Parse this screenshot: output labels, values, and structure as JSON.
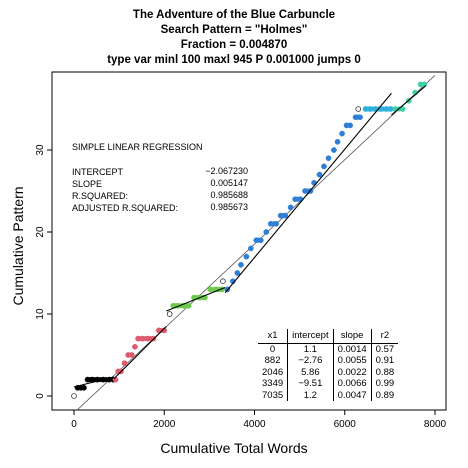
{
  "titles": {
    "line1": "The Adventure of the Blue Carbuncle",
    "line2": "Search Pattern = \"Holmes\"",
    "line3": "Fraction = 0.004870",
    "line4": "type var minl 100 maxl 945 P 0.001000 jumps 0"
  },
  "regression": {
    "heading": "SIMPLE LINEAR REGRESSION",
    "intercept_label": "INTERCEPT",
    "intercept_value": "−2.067230",
    "slope_label": "SLOPE",
    "slope_value": "0.005147",
    "rsq_label": "R.SQUARED:",
    "rsq_value": "0.985688",
    "adj_label": "ADJUSTED R.SQUARED:",
    "adj_value": "0.985673"
  },
  "fit_table": {
    "headers": [
      "x1",
      "intercept",
      "slope",
      "r2"
    ],
    "rows": [
      [
        "0",
        "1.1",
        "0.0014",
        "0.57"
      ],
      [
        "882",
        "−2.76",
        "0.0055",
        "0.91"
      ],
      [
        "2046",
        "5.86",
        "0.0022",
        "0.88"
      ],
      [
        "3349",
        "−9.51",
        "0.0066",
        "0.99"
      ],
      [
        "7035",
        "1.2",
        "0.0047",
        "0.89"
      ]
    ]
  },
  "chart_data": {
    "type": "scatter",
    "xlabel": "Cumulative Total Words",
    "ylabel": "Cumulative Pattern",
    "xlim": [
      0,
      8000
    ],
    "ylim": [
      0,
      38
    ],
    "xticks": [
      0,
      2000,
      4000,
      6000,
      8000
    ],
    "yticks": [
      0,
      10,
      20,
      30
    ],
    "colors": {
      "segment1": "#000000",
      "segment2": "#e05a6e",
      "segment3": "#6cc94a",
      "segment4": "#2e7fd6",
      "segment5": "#2fb0dd",
      "segment6": "#3fd0a8"
    },
    "series": [
      {
        "segment": 1,
        "color_key": "segment1",
        "points": [
          [
            80,
            1
          ],
          [
            150,
            1
          ],
          [
            220,
            1
          ],
          [
            300,
            2
          ],
          [
            400,
            2
          ],
          [
            520,
            2
          ],
          [
            650,
            2
          ],
          [
            780,
            2
          ],
          [
            870,
            2
          ]
        ]
      },
      {
        "segment": 2,
        "color_key": "segment2",
        "points": [
          [
            920,
            2
          ],
          [
            980,
            3
          ],
          [
            1040,
            3
          ],
          [
            1120,
            4
          ],
          [
            1200,
            5
          ],
          [
            1280,
            5
          ],
          [
            1350,
            6
          ],
          [
            1420,
            7
          ],
          [
            1520,
            7
          ],
          [
            1640,
            7
          ],
          [
            1760,
            7
          ],
          [
            1880,
            8
          ],
          [
            2000,
            8
          ]
        ]
      },
      {
        "segment": 3,
        "color_key": "segment3",
        "points": [
          [
            2120,
            10
          ],
          [
            2200,
            11
          ],
          [
            2300,
            11
          ],
          [
            2420,
            11
          ],
          [
            2540,
            11
          ],
          [
            2660,
            12
          ],
          [
            2780,
            12
          ],
          [
            2900,
            12
          ],
          [
            3020,
            13
          ],
          [
            3150,
            13
          ],
          [
            3280,
            13
          ]
        ]
      },
      {
        "segment": 4,
        "color_key": "segment4",
        "points": [
          [
            3400,
            13
          ],
          [
            3520,
            14
          ],
          [
            3620,
            15
          ],
          [
            3700,
            16
          ],
          [
            3820,
            17
          ],
          [
            3920,
            18
          ],
          [
            4040,
            19
          ],
          [
            4140,
            19
          ],
          [
            4260,
            20
          ],
          [
            4360,
            21
          ],
          [
            4480,
            21
          ],
          [
            4580,
            22
          ],
          [
            4680,
            22
          ],
          [
            4800,
            23
          ],
          [
            4900,
            24
          ],
          [
            5020,
            24
          ],
          [
            5120,
            25
          ],
          [
            5240,
            25
          ],
          [
            5320,
            26
          ],
          [
            5440,
            27
          ],
          [
            5540,
            28
          ],
          [
            5640,
            29
          ],
          [
            5760,
            30
          ],
          [
            5840,
            31
          ],
          [
            5940,
            32
          ],
          [
            6040,
            33
          ],
          [
            6120,
            33
          ],
          [
            6240,
            34
          ],
          [
            6340,
            34
          ]
        ]
      },
      {
        "segment": 5,
        "color_key": "segment5",
        "points": [
          [
            6460,
            35
          ],
          [
            6560,
            35
          ],
          [
            6680,
            35
          ],
          [
            6800,
            35
          ],
          [
            6920,
            35
          ],
          [
            7020,
            35
          ]
        ]
      },
      {
        "segment": 6,
        "color_key": "segment6",
        "points": [
          [
            7120,
            35
          ],
          [
            7280,
            35
          ],
          [
            7420,
            36
          ],
          [
            7560,
            37
          ],
          [
            7680,
            38
          ],
          [
            7760,
            38
          ]
        ]
      }
    ],
    "hollow_points": [
      [
        0,
        0
      ],
      [
        2120,
        10
      ],
      [
        3300,
        14
      ],
      [
        6300,
        35
      ]
    ],
    "fit_lines": [
      {
        "x1": 0,
        "x2": 882,
        "intercept": 1.1,
        "slope": 0.0014
      },
      {
        "x1": 882,
        "x2": 2046,
        "intercept": -2.76,
        "slope": 0.0055
      },
      {
        "x1": 2046,
        "x2": 3349,
        "intercept": 5.86,
        "slope": 0.0022
      },
      {
        "x1": 3349,
        "x2": 7035,
        "intercept": -9.51,
        "slope": 0.0066
      },
      {
        "x1": 7035,
        "x2": 7800,
        "intercept": 1.2,
        "slope": 0.0047
      }
    ],
    "overall_fit": {
      "intercept": -2.06723,
      "slope": 0.005147,
      "x1": 0,
      "x2": 8000
    }
  }
}
